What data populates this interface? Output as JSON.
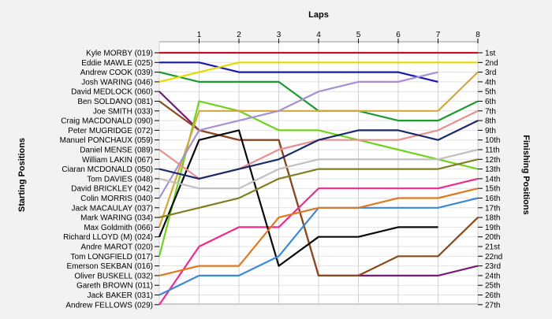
{
  "chart_data": {
    "type": "line",
    "title": "",
    "top_axis_label": "Laps",
    "left_axis_label": "Starting Positions",
    "right_axis_label": "Finishing Positions",
    "laps": [
      0,
      1,
      2,
      3,
      4,
      5,
      6,
      7,
      8
    ],
    "lap_tick_labels": [
      "1",
      "2",
      "3",
      "4",
      "5",
      "6",
      "7",
      "8"
    ],
    "xlim": [
      0,
      8
    ],
    "ylim": [
      1,
      27
    ],
    "y_inverted": true,
    "grid": true,
    "starting_positions": [
      "Kyle MORBY (019)",
      "Eddie MAWLE (025)",
      "Andrew COOK (039)",
      "Josh WARING (046)",
      "David MEDLOCK (060)",
      "Ben SOLDANO (081)",
      "Joe SMITH (033)",
      "Craig MACDONALD (090)",
      "Peter MUGRIDGE (072)",
      "Manuel PONCHAUX (059)",
      "Daniel MENSE (089)",
      "William LAKIN (067)",
      "Ciaran MCDONALD (050)",
      "Tom DAVIES (048)",
      "David BRICKLEY (042)",
      "Colin MORRIS (040)",
      "Jack MACAULAY (037)",
      "Mark WARING (034)",
      "Max Goldmith (066)",
      "Richard LLOYD  (M) (024)",
      "Andre MAROT (020)",
      "Tom LONGFIELD (017)",
      "Emerson SEKBAN (016)",
      "Oliver BUSKELL (032)",
      "Gareth BROWN (011)",
      "Jack BAKER (031)",
      "Andrew FELLOWS (029)"
    ],
    "finishing_positions": [
      "1st",
      "2nd",
      "3rd",
      "4th",
      "5th",
      "6th",
      "7th",
      "8th",
      "9th",
      "10th",
      "11th",
      "12th",
      "13th",
      "14th",
      "15th",
      "16th",
      "17th",
      "18th",
      "19th",
      "20th",
      "21st",
      "22nd",
      "23rd",
      "24th",
      "25th",
      "26th",
      "27th"
    ],
    "series": [
      {
        "color": "#c8102e",
        "positions": [
          1,
          1,
          1,
          1,
          1,
          1,
          1,
          1,
          1
        ]
      },
      {
        "color": "#1a1aa8",
        "positions": [
          2,
          2,
          3,
          3,
          3,
          3,
          3,
          4,
          null
        ]
      },
      {
        "color": "#1e9a30",
        "positions": [
          3,
          4,
          4,
          4,
          7,
          7,
          8,
          8,
          6
        ]
      },
      {
        "color": "#e8d800",
        "positions": [
          4,
          3,
          2,
          2,
          2,
          2,
          2,
          2,
          2
        ]
      },
      {
        "color": "#7a1a7a",
        "positions": [
          5,
          9,
          10,
          10,
          24,
          24,
          24,
          24,
          23
        ]
      },
      {
        "color": "#8a4a1a",
        "positions": [
          6,
          9,
          10,
          10,
          24,
          24,
          22,
          22,
          18
        ]
      },
      {
        "color": "#ee2a90",
        "positions": [
          27,
          21,
          19,
          19,
          15,
          15,
          15,
          15,
          14
        ]
      },
      {
        "color": "#6fd21e",
        "positions": [
          22,
          6,
          7,
          9,
          9,
          10,
          11,
          12,
          13
        ]
      },
      {
        "color": "#0a0a0a",
        "positions": [
          20,
          10,
          9,
          23,
          20,
          20,
          19,
          19,
          null
        ]
      },
      {
        "color": "#d4a83c",
        "positions": [
          19,
          7,
          7,
          7,
          7,
          7,
          7,
          7,
          3
        ]
      },
      {
        "color": "#a690d0",
        "positions": [
          16,
          9,
          8,
          7,
          5,
          4,
          4,
          3,
          null
        ]
      },
      {
        "color": "#e89090",
        "positions": [
          11,
          14,
          13,
          11,
          10,
          10,
          10,
          9,
          7
        ]
      },
      {
        "color": "#3a8ad8",
        "positions": [
          26,
          24,
          24,
          22,
          17,
          17,
          17,
          17,
          16
        ]
      },
      {
        "color": "#e07820",
        "positions": [
          24,
          23,
          23,
          18,
          17,
          17,
          16,
          16,
          15
        ]
      },
      {
        "color": "#808020",
        "positions": [
          18,
          17,
          16,
          14,
          13,
          13,
          13,
          13,
          12
        ]
      },
      {
        "color": "#1a2a6a",
        "positions": [
          13,
          14,
          13,
          12,
          10,
          9,
          9,
          10,
          8
        ]
      },
      {
        "color": "#c0c0c0",
        "positions": [
          14,
          15,
          15,
          13,
          12,
          12,
          12,
          12,
          11
        ]
      }
    ]
  }
}
